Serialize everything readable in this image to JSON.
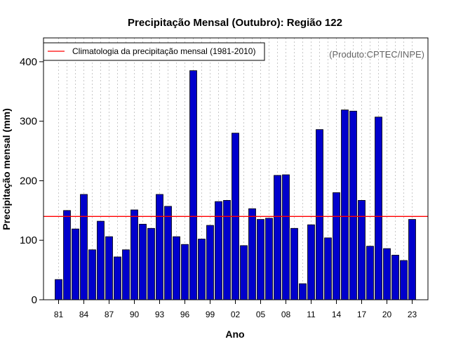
{
  "chart_data": {
    "type": "bar",
    "title": "Precipitação Mensal (Outubro): Região 122",
    "xlabel": "Ano",
    "ylabel": "Precipitação mensal (mm)",
    "credit": "(Produto:CPTEC/INPE)",
    "ylim": [
      0,
      440
    ],
    "yticks": [
      0,
      100,
      200,
      300,
      400
    ],
    "categories": [
      "81",
      "82",
      "83",
      "84",
      "85",
      "86",
      "87",
      "88",
      "89",
      "90",
      "91",
      "92",
      "93",
      "94",
      "95",
      "96",
      "97",
      "98",
      "99",
      "00",
      "01",
      "02",
      "03",
      "04",
      "05",
      "06",
      "07",
      "08",
      "09",
      "10",
      "11",
      "12",
      "13",
      "14",
      "15",
      "16",
      "17",
      "18",
      "19",
      "20",
      "21",
      "22",
      "23"
    ],
    "xtick_labels": [
      "81",
      "84",
      "87",
      "90",
      "93",
      "96",
      "99",
      "02",
      "05",
      "08",
      "11",
      "14",
      "17",
      "20",
      "23"
    ],
    "xtick_every": 3,
    "values": [
      34,
      150,
      119,
      177,
      84,
      132,
      106,
      72,
      84,
      151,
      127,
      120,
      177,
      157,
      106,
      93,
      385,
      102,
      125,
      165,
      167,
      280,
      91,
      153,
      135,
      137,
      209,
      210,
      120,
      27,
      126,
      286,
      104,
      180,
      319,
      317,
      167,
      90,
      307,
      86,
      75,
      66,
      135
    ],
    "climatology": {
      "label": "Climatologia da precipitação mensal (1981-2010)",
      "value": 140,
      "color": "#ff0000"
    },
    "legend_position": "top-left",
    "bar_color": "#0000cc",
    "grid": "vertical dotted"
  }
}
